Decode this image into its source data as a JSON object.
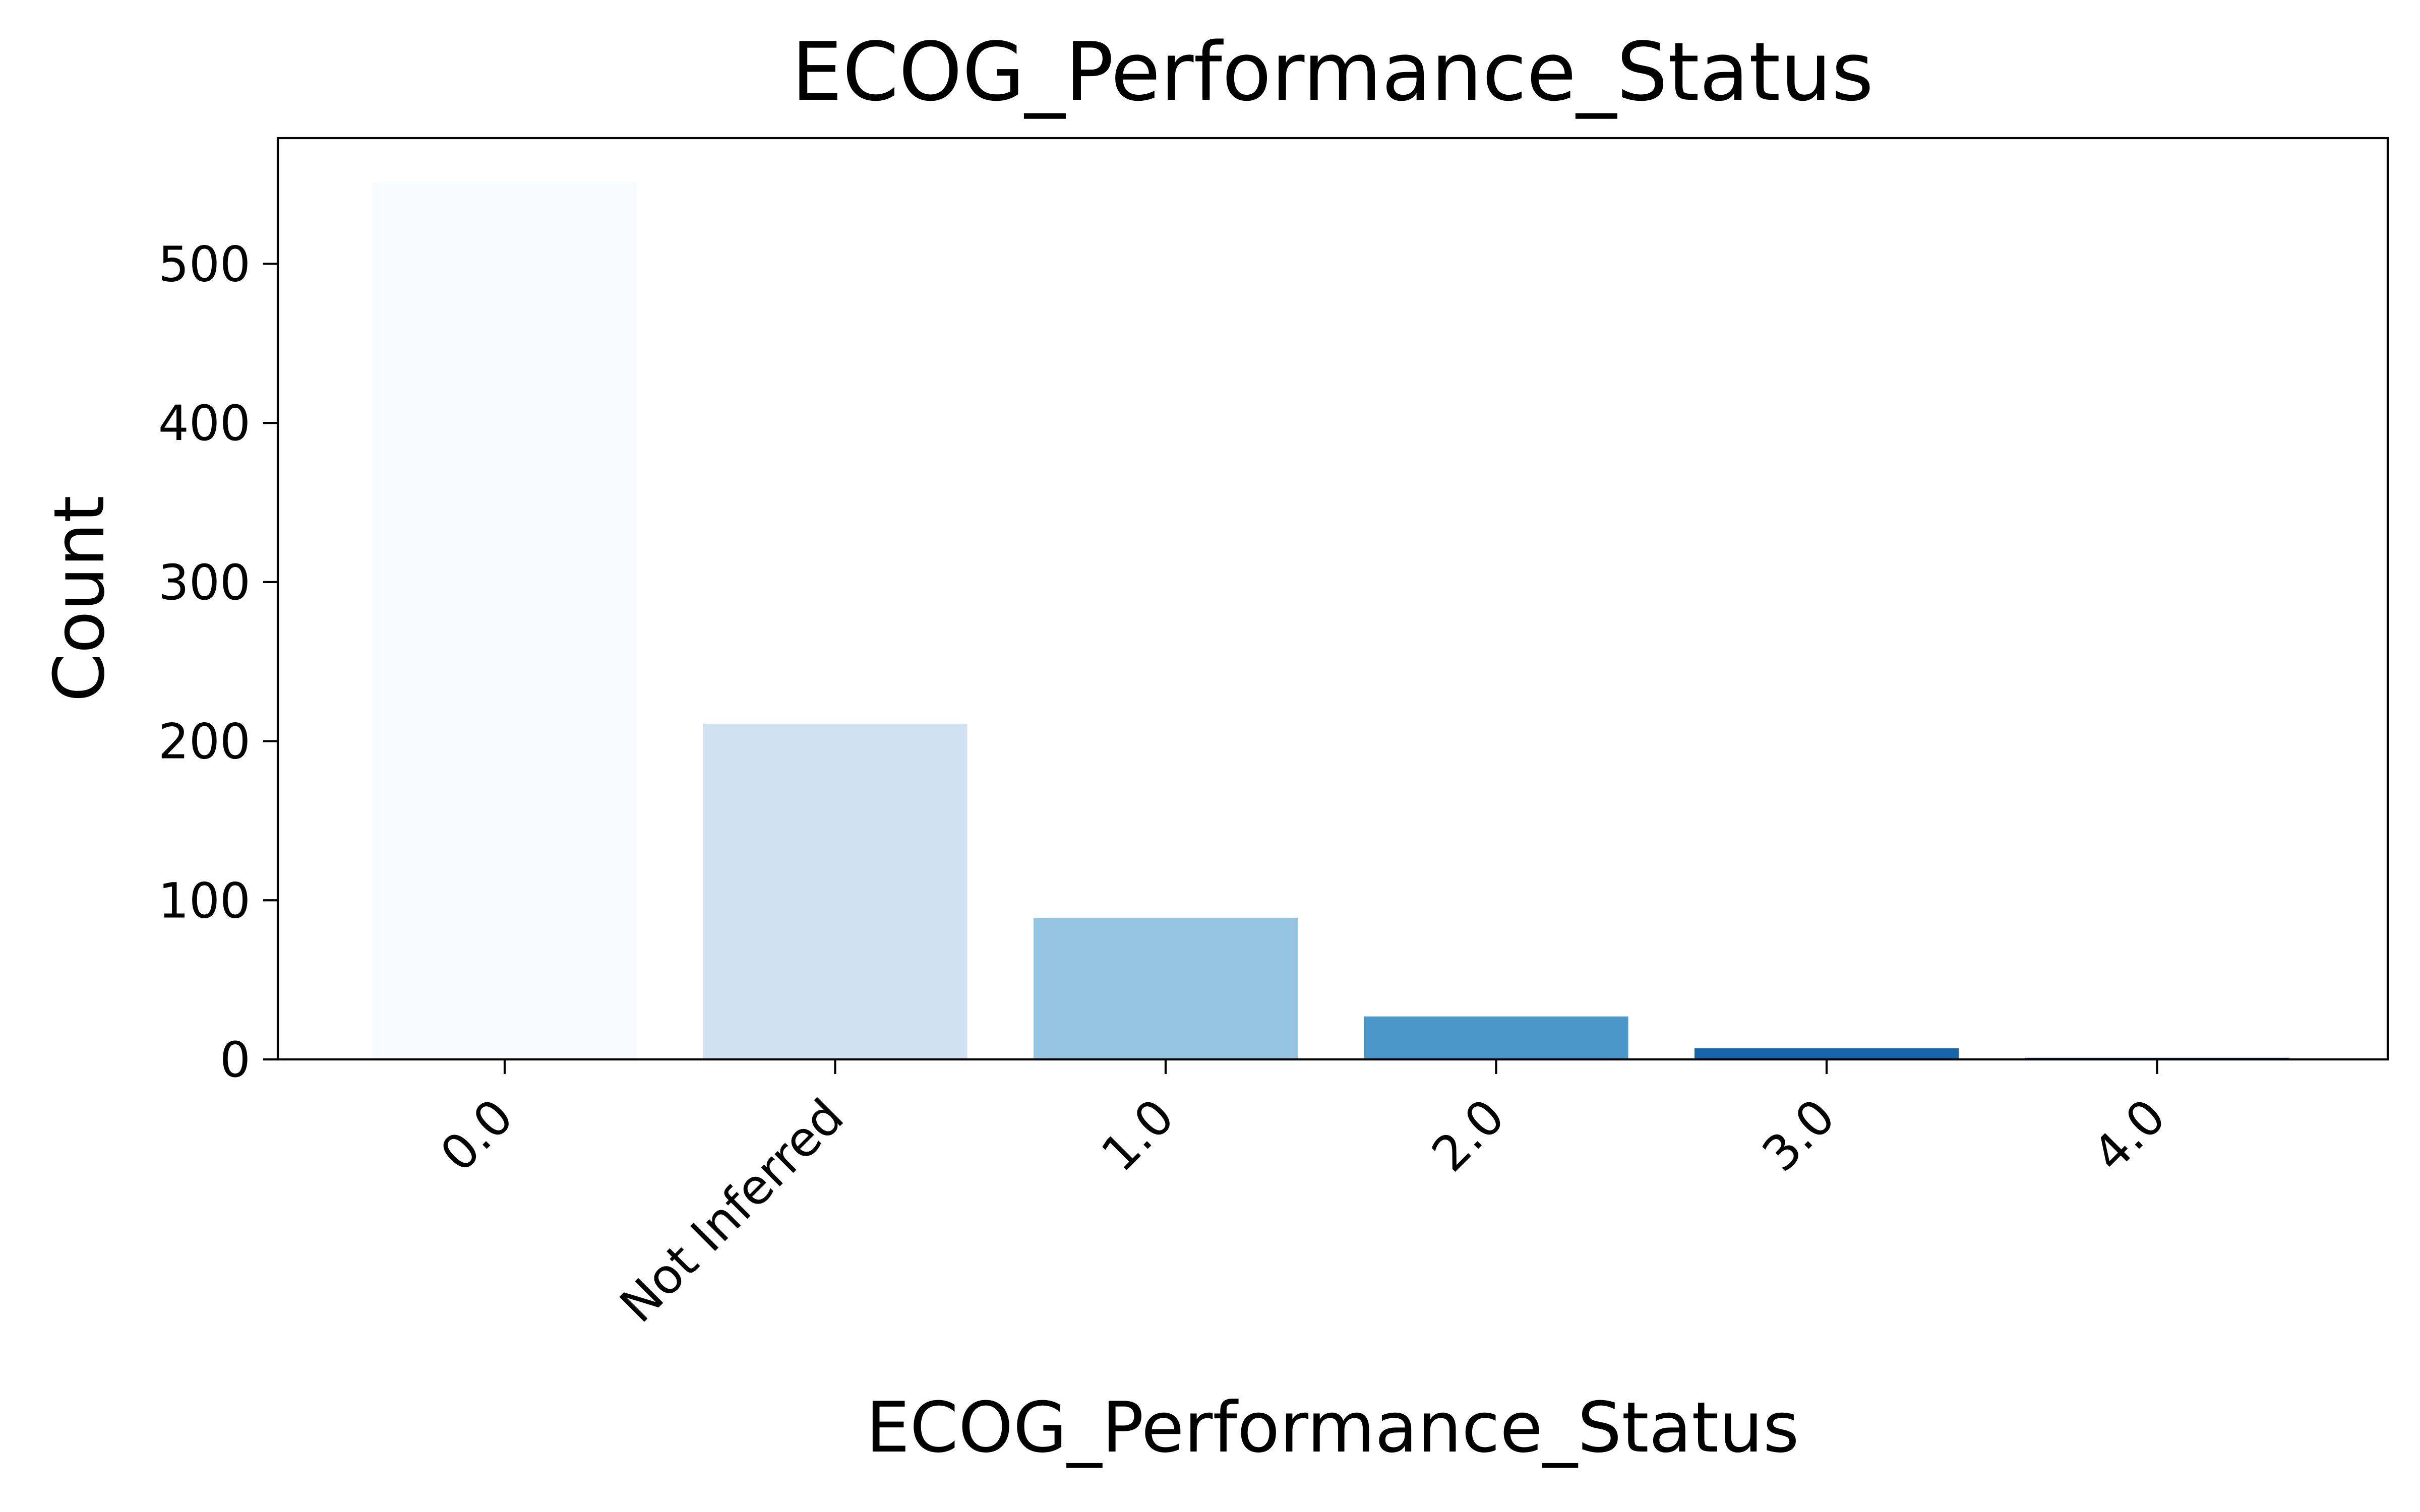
{
  "chart_data": {
    "type": "bar",
    "title": "ECOG_Performance_Status",
    "xlabel": "ECOG_Performance_Status",
    "ylabel": "Count",
    "categories": [
      "0.0",
      "Not Inferred",
      "1.0",
      "2.0",
      "3.0",
      "4.0"
    ],
    "values": [
      551,
      211,
      89,
      27,
      7,
      1
    ],
    "colors": [
      "#f7fbff",
      "#d0e1f2",
      "#94c4df",
      "#4a98c9",
      "#1764ab",
      "#08306b"
    ],
    "ylim": [
      0,
      579
    ],
    "yticks": [
      0,
      100,
      200,
      300,
      400,
      500
    ],
    "grid": false,
    "legend": false
  }
}
